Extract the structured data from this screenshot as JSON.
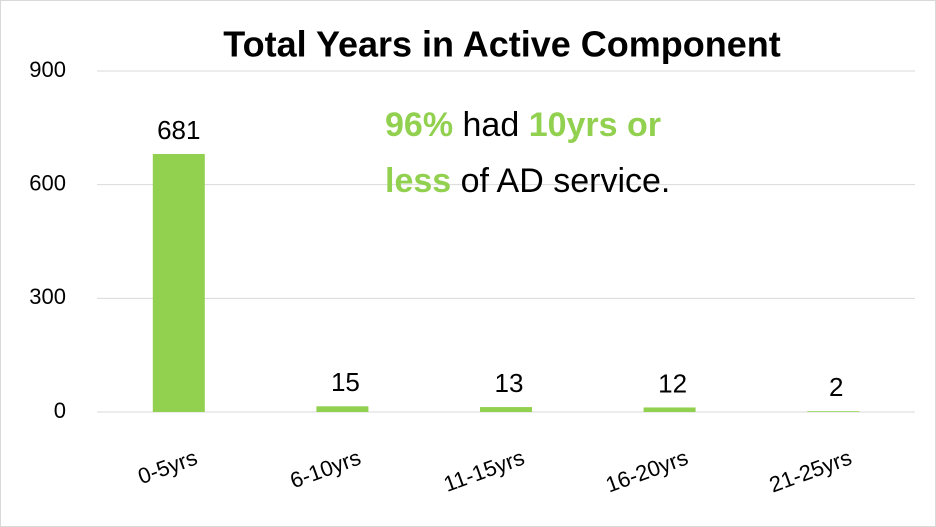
{
  "chart_data": {
    "type": "bar",
    "title": "Total Years in Active Component",
    "categories": [
      "0-5yrs",
      "6-10yrs",
      "11-15yrs",
      "16-20yrs",
      "21-25yrs"
    ],
    "values": [
      681,
      15,
      13,
      12,
      2
    ],
    "color": "#92d050",
    "ylim": [
      0,
      900
    ],
    "yticks": [
      0,
      300,
      600,
      900
    ],
    "grid": true,
    "annotation": {
      "highlight_color": "#92d050",
      "lines": [
        [
          {
            "text": "96%",
            "highlight": true
          },
          {
            "text": " had ",
            "highlight": false
          },
          {
            "text": "10yrs or",
            "highlight": true
          }
        ],
        [
          {
            "text": "less",
            "highlight": true
          },
          {
            "text": " of AD service.",
            "highlight": false
          }
        ]
      ]
    }
  }
}
